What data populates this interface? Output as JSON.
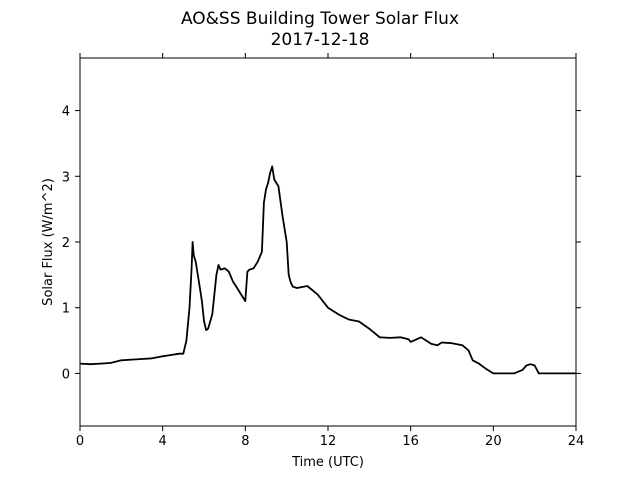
{
  "chart_data": {
    "type": "line",
    "title": "AO&SS Building Tower Solar Flux",
    "subtitle": "2017-12-18",
    "xlabel": "Time (UTC)",
    "ylabel": "Solar Flux (W/m^2)",
    "xlim": [
      0,
      24
    ],
    "ylim": [
      -0.8,
      4.8
    ],
    "xticks": [
      0,
      4,
      8,
      12,
      16,
      20,
      24
    ],
    "yticks": [
      0,
      1,
      2,
      3,
      4
    ],
    "grid": false,
    "line_color": "#000000",
    "series": [
      {
        "x": [
          0,
          0.5,
          1,
          1.5,
          2,
          2.5,
          3,
          3.5,
          4,
          4.4,
          4.8,
          5.0,
          5.15,
          5.3,
          5.4,
          5.45,
          5.5,
          5.6,
          5.7,
          5.8,
          5.9,
          6.0,
          6.1,
          6.2,
          6.4,
          6.6,
          6.7,
          6.8,
          7.0,
          7.2,
          7.4,
          7.6,
          7.8,
          8.0,
          8.1,
          8.2,
          8.4,
          8.6,
          8.8,
          8.9,
          9.0,
          9.1,
          9.2,
          9.3,
          9.4,
          9.5,
          9.6,
          9.8,
          10.0,
          10.1,
          10.2,
          10.3,
          10.5,
          11.0,
          11.5,
          12.0,
          12.5,
          13.0,
          13.5,
          14.0,
          14.5,
          15.0,
          15.5,
          15.9,
          16.0,
          16.5,
          17.0,
          17.3,
          17.5,
          18.0,
          18.5,
          18.8,
          19.0,
          19.3,
          19.6,
          20.0,
          21.0,
          21.4,
          21.6,
          21.8,
          22.0,
          22.2,
          22.4,
          23.0,
          24.0
        ],
        "y": [
          0.15,
          0.14,
          0.15,
          0.16,
          0.2,
          0.21,
          0.22,
          0.23,
          0.26,
          0.28,
          0.3,
          0.3,
          0.5,
          1.0,
          1.6,
          2.0,
          1.8,
          1.7,
          1.5,
          1.3,
          1.1,
          0.8,
          0.66,
          0.68,
          0.9,
          1.5,
          1.65,
          1.58,
          1.6,
          1.55,
          1.4,
          1.3,
          1.2,
          1.1,
          1.55,
          1.58,
          1.6,
          1.7,
          1.85,
          2.6,
          2.8,
          2.9,
          3.05,
          3.15,
          2.95,
          2.9,
          2.85,
          2.4,
          2.0,
          1.5,
          1.38,
          1.32,
          1.3,
          1.33,
          1.2,
          1.0,
          0.9,
          0.82,
          0.79,
          0.68,
          0.55,
          0.54,
          0.55,
          0.52,
          0.48,
          0.55,
          0.45,
          0.43,
          0.47,
          0.46,
          0.43,
          0.35,
          0.2,
          0.15,
          0.08,
          0.0,
          0.0,
          0.05,
          0.12,
          0.14,
          0.12,
          0.0,
          0.0,
          0.0,
          0.0
        ]
      }
    ]
  }
}
